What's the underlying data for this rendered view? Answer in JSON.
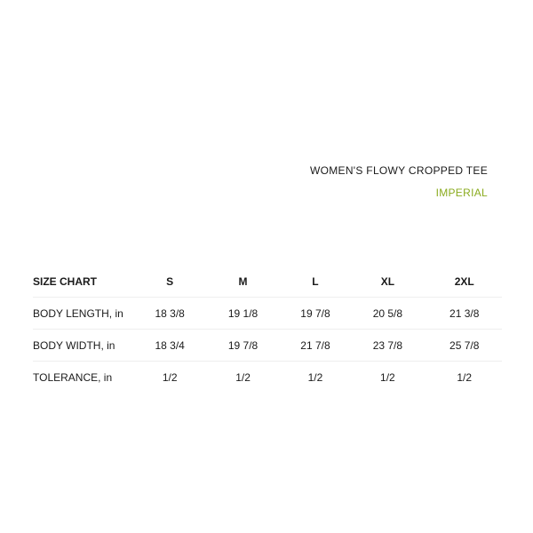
{
  "header": {
    "title": "WOMEN'S FLOWY CROPPED TEE",
    "unit_system": "IMPERIAL",
    "accent_color": "#8aab1e"
  },
  "table": {
    "corner_label": "SIZE CHART",
    "sizes": [
      "S",
      "M",
      "L",
      "XL",
      "2XL"
    ],
    "rows": [
      {
        "label": "BODY LENGTH, in",
        "values": [
          "18 3/8",
          "19 1/8",
          "19 7/8",
          "20 5/8",
          "21 3/8"
        ]
      },
      {
        "label": "BODY WIDTH, in",
        "values": [
          "18 3/4",
          "19 7/8",
          "21 7/8",
          "23 7/8",
          "25 7/8"
        ]
      },
      {
        "label": "TOLERANCE, in",
        "values": [
          "1/2",
          "1/2",
          "1/2",
          "1/2",
          "1/2"
        ]
      }
    ]
  }
}
